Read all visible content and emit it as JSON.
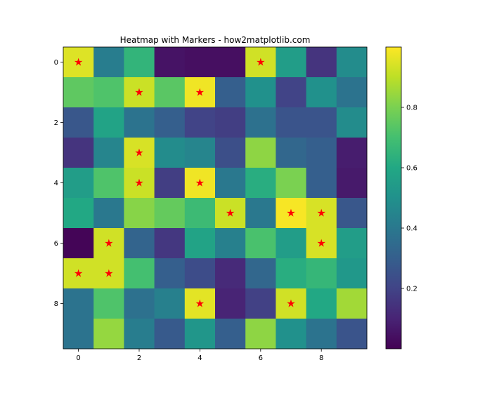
{
  "chart_data": {
    "type": "heatmap",
    "title": "Heatmap with Markers - how2matplotlib.com",
    "xlabel": "",
    "ylabel": "",
    "colormap": "viridis",
    "rows": 10,
    "cols": 10,
    "x_ticks": [
      0,
      2,
      4,
      6,
      8
    ],
    "y_ticks": [
      0,
      2,
      4,
      6,
      8
    ],
    "colorbar_ticks": [
      0.2,
      0.4,
      0.6,
      0.8
    ],
    "colorbar_range": [
      0.0,
      1.0
    ],
    "marker_threshold": 0.9,
    "marker_symbol": "★",
    "marker_color": "#ff0000",
    "values": [
      [
        0.95,
        0.42,
        0.65,
        0.05,
        0.04,
        0.04,
        0.93,
        0.55,
        0.15,
        0.48
      ],
      [
        0.75,
        0.72,
        0.92,
        0.74,
        0.98,
        0.3,
        0.5,
        0.2,
        0.5,
        0.38
      ],
      [
        0.27,
        0.58,
        0.38,
        0.3,
        0.2,
        0.18,
        0.37,
        0.26,
        0.26,
        0.48
      ],
      [
        0.15,
        0.45,
        0.94,
        0.48,
        0.45,
        0.24,
        0.83,
        0.33,
        0.3,
        0.08
      ],
      [
        0.55,
        0.72,
        0.92,
        0.18,
        0.98,
        0.4,
        0.62,
        0.8,
        0.3,
        0.07
      ],
      [
        0.6,
        0.4,
        0.82,
        0.76,
        0.68,
        0.92,
        0.4,
        0.99,
        0.94,
        0.27
      ],
      [
        0.01,
        0.93,
        0.32,
        0.16,
        0.58,
        0.43,
        0.71,
        0.55,
        0.94,
        0.55
      ],
      [
        0.93,
        0.93,
        0.7,
        0.3,
        0.23,
        0.12,
        0.33,
        0.62,
        0.66,
        0.53
      ],
      [
        0.38,
        0.72,
        0.37,
        0.43,
        0.96,
        0.1,
        0.19,
        0.93,
        0.6,
        0.86
      ],
      [
        0.38,
        0.84,
        0.42,
        0.28,
        0.52,
        0.3,
        0.83,
        0.5,
        0.38,
        0.26
      ]
    ]
  }
}
